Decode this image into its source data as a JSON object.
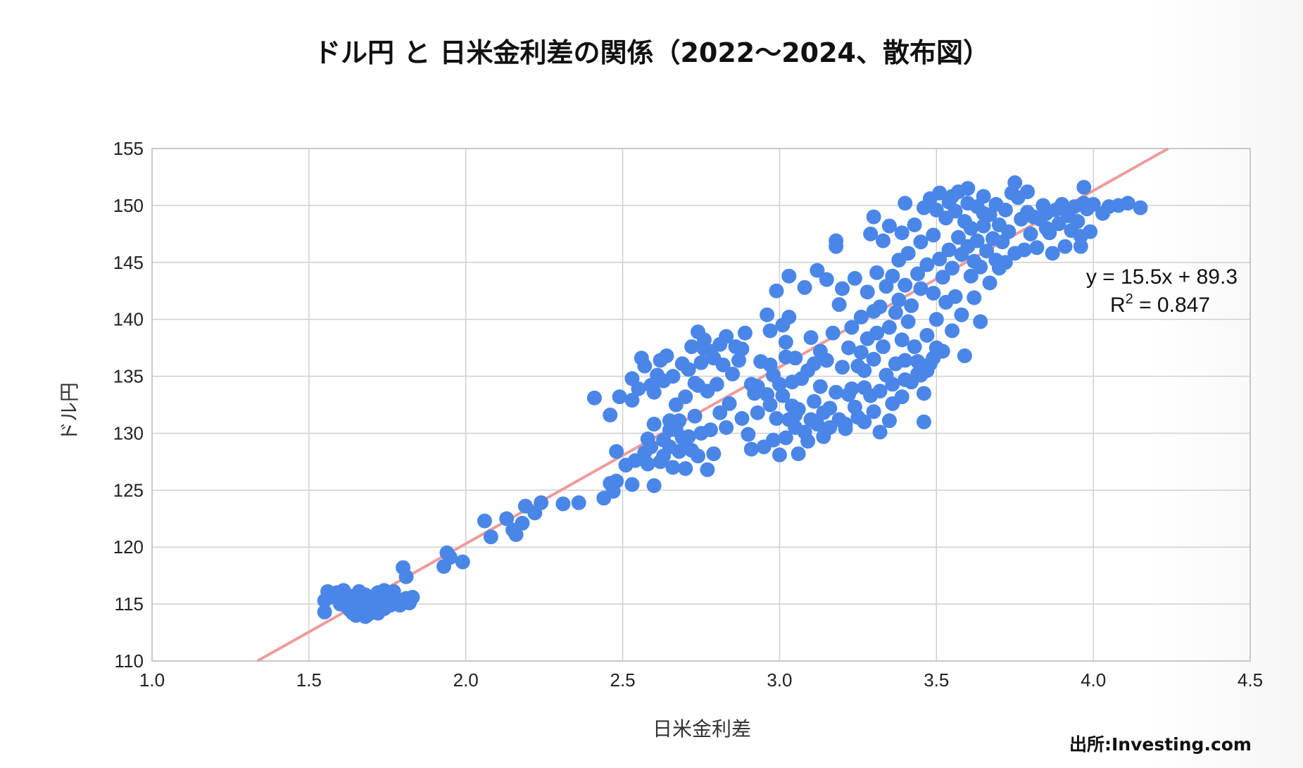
{
  "chart_data": {
    "type": "scatter",
    "title": "ドル円 と 日米金利差の関係（2022〜2024、散布図）",
    "xlabel": "日米金利差",
    "ylabel": "ドル円",
    "xlim": [
      1.0,
      4.5
    ],
    "ylim": [
      110,
      155
    ],
    "xticks": [
      "1.0",
      "1.5",
      "2.0",
      "2.5",
      "3.0",
      "3.5",
      "4.0",
      "4.5"
    ],
    "yticks": [
      "110",
      "115",
      "120",
      "125",
      "130",
      "135",
      "140",
      "145",
      "150",
      "155"
    ],
    "grid": true,
    "trendline": {
      "slope": 15.5,
      "intercept": 89.3,
      "equation": "y = 15.5x + 89.3",
      "r2_prefix": "R",
      "r2_sup": "2",
      "r2_value": " = 0.847",
      "color": "#ee9b9b"
    },
    "series_color": "#4a86e8",
    "points": [
      [
        1.55,
        114.3
      ],
      [
        1.55,
        115.3
      ],
      [
        1.56,
        116.1
      ],
      [
        1.58,
        115.6
      ],
      [
        1.59,
        116.0
      ],
      [
        1.6,
        115.0
      ],
      [
        1.61,
        115.4
      ],
      [
        1.62,
        114.8
      ],
      [
        1.63,
        115.7
      ],
      [
        1.63,
        114.5
      ],
      [
        1.64,
        114.2
      ],
      [
        1.65,
        115.1
      ],
      [
        1.65,
        114.0
      ],
      [
        1.66,
        115.4
      ],
      [
        1.67,
        114.6
      ],
      [
        1.68,
        113.9
      ],
      [
        1.68,
        115.8
      ],
      [
        1.69,
        114.9
      ],
      [
        1.7,
        114.3
      ],
      [
        1.7,
        115.6
      ],
      [
        1.71,
        114.8
      ],
      [
        1.72,
        114.2
      ],
      [
        1.72,
        116.0
      ],
      [
        1.73,
        115.1
      ],
      [
        1.74,
        114.6
      ],
      [
        1.75,
        115.5
      ],
      [
        1.76,
        114.9
      ],
      [
        1.77,
        116.1
      ],
      [
        1.78,
        115.2
      ],
      [
        1.79,
        114.9
      ],
      [
        1.8,
        118.2
      ],
      [
        1.81,
        117.4
      ],
      [
        1.81,
        115.5
      ],
      [
        1.82,
        115.1
      ],
      [
        1.83,
        115.6
      ],
      [
        1.69,
        114.1
      ],
      [
        1.71,
        115.3
      ],
      [
        1.74,
        116.2
      ],
      [
        1.66,
        116.1
      ],
      [
        1.61,
        116.2
      ],
      [
        1.93,
        118.3
      ],
      [
        1.94,
        119.5
      ],
      [
        1.95,
        119.1
      ],
      [
        1.99,
        118.7
      ],
      [
        2.06,
        122.3
      ],
      [
        2.08,
        120.9
      ],
      [
        2.13,
        122.5
      ],
      [
        2.15,
        121.5
      ],
      [
        2.16,
        121.1
      ],
      [
        2.18,
        122.1
      ],
      [
        2.19,
        123.6
      ],
      [
        2.22,
        123.0
      ],
      [
        2.24,
        123.9
      ],
      [
        2.31,
        123.8
      ],
      [
        2.36,
        123.9
      ],
      [
        2.44,
        124.3
      ],
      [
        2.46,
        125.6
      ],
      [
        2.48,
        125.8
      ],
      [
        2.47,
        124.9
      ],
      [
        2.53,
        125.5
      ],
      [
        2.41,
        133.1
      ],
      [
        2.46,
        131.6
      ],
      [
        2.48,
        128.4
      ],
      [
        2.49,
        133.2
      ],
      [
        2.51,
        127.2
      ],
      [
        2.53,
        134.8
      ],
      [
        2.53,
        132.9
      ],
      [
        2.54,
        127.6
      ],
      [
        2.55,
        133.9
      ],
      [
        2.56,
        136.6
      ],
      [
        2.57,
        135.9
      ],
      [
        2.57,
        128.3
      ],
      [
        2.58,
        127.3
      ],
      [
        2.59,
        134.2
      ],
      [
        2.59,
        128.8
      ],
      [
        2.6,
        130.8
      ],
      [
        2.6,
        133.6
      ],
      [
        2.61,
        135.1
      ],
      [
        2.62,
        127.5
      ],
      [
        2.62,
        136.4
      ],
      [
        2.63,
        129.4
      ],
      [
        2.63,
        134.6
      ],
      [
        2.64,
        136.8
      ],
      [
        2.65,
        128.8
      ],
      [
        2.65,
        130.3
      ],
      [
        2.65,
        131.1
      ],
      [
        2.66,
        127.0
      ],
      [
        2.66,
        135.0
      ],
      [
        2.67,
        130.3
      ],
      [
        2.68,
        128.4
      ],
      [
        2.69,
        136.1
      ],
      [
        2.69,
        129.6
      ],
      [
        2.7,
        133.2
      ],
      [
        2.7,
        129.1
      ],
      [
        2.71,
        135.6
      ],
      [
        2.72,
        128.5
      ],
      [
        2.72,
        137.6
      ],
      [
        2.73,
        131.5
      ],
      [
        2.73,
        134.4
      ],
      [
        2.74,
        128.0
      ],
      [
        2.74,
        138.9
      ],
      [
        2.75,
        136.2
      ],
      [
        2.75,
        130.0
      ],
      [
        2.76,
        138.2
      ],
      [
        2.77,
        133.7
      ],
      [
        2.78,
        137.2
      ],
      [
        2.78,
        130.3
      ],
      [
        2.79,
        136.6
      ],
      [
        2.8,
        134.3
      ],
      [
        2.81,
        137.8
      ],
      [
        2.81,
        131.8
      ],
      [
        2.82,
        136.0
      ],
      [
        2.83,
        138.5
      ],
      [
        2.83,
        130.5
      ],
      [
        2.84,
        132.6
      ],
      [
        2.85,
        135.2
      ],
      [
        2.86,
        137.6
      ],
      [
        2.87,
        136.4
      ],
      [
        2.88,
        131.3
      ],
      [
        2.7,
        126.9
      ],
      [
        2.71,
        129.7
      ],
      [
        2.77,
        126.8
      ],
      [
        2.79,
        128.2
      ],
      [
        2.68,
        131.1
      ],
      [
        2.63,
        128.0
      ],
      [
        2.6,
        125.4
      ],
      [
        2.74,
        134.2
      ],
      [
        2.76,
        137.4
      ],
      [
        2.67,
        132.5
      ],
      [
        2.58,
        129.5
      ],
      [
        2.88,
        137.4
      ],
      [
        2.89,
        138.8
      ],
      [
        2.9,
        129.9
      ],
      [
        2.91,
        134.3
      ],
      [
        2.91,
        128.6
      ],
      [
        2.92,
        133.5
      ],
      [
        2.93,
        131.8
      ],
      [
        2.94,
        136.3
      ],
      [
        2.95,
        128.8
      ],
      [
        2.96,
        133.4
      ],
      [
        2.96,
        140.4
      ],
      [
        2.97,
        132.5
      ],
      [
        2.97,
        139.0
      ],
      [
        2.98,
        129.4
      ],
      [
        2.98,
        135.1
      ],
      [
        2.99,
        142.5
      ],
      [
        3.0,
        128.1
      ],
      [
        3.01,
        133.3
      ],
      [
        3.01,
        139.5
      ],
      [
        3.02,
        136.7
      ],
      [
        3.02,
        129.6
      ],
      [
        3.03,
        131.2
      ],
      [
        3.03,
        140.2
      ],
      [
        3.03,
        143.8
      ],
      [
        3.04,
        132.4
      ],
      [
        3.04,
        134.5
      ],
      [
        3.05,
        130.5
      ],
      [
        3.05,
        136.6
      ],
      [
        3.06,
        128.2
      ],
      [
        3.06,
        132.1
      ],
      [
        3.07,
        134.8
      ],
      [
        3.08,
        130.1
      ],
      [
        3.08,
        142.8
      ],
      [
        3.09,
        135.5
      ],
      [
        3.1,
        131.2
      ],
      [
        3.1,
        138.4
      ],
      [
        3.11,
        136.1
      ],
      [
        3.11,
        132.8
      ],
      [
        3.12,
        144.3
      ],
      [
        3.12,
        130.8
      ],
      [
        3.13,
        134.1
      ],
      [
        3.13,
        137.2
      ],
      [
        3.14,
        131.8
      ],
      [
        3.15,
        143.5
      ],
      [
        3.15,
        136.4
      ],
      [
        3.16,
        132.2
      ],
      [
        3.16,
        130.5
      ],
      [
        3.17,
        138.8
      ],
      [
        3.18,
        133.6
      ],
      [
        3.18,
        146.9
      ],
      [
        3.18,
        146.4
      ],
      [
        3.19,
        131.2
      ],
      [
        3.19,
        141.3
      ],
      [
        3.2,
        135.8
      ],
      [
        3.2,
        142.7
      ],
      [
        3.21,
        130.8
      ],
      [
        3.22,
        137.5
      ],
      [
        3.22,
        133.4
      ],
      [
        3.23,
        139.3
      ],
      [
        3.24,
        132.3
      ],
      [
        3.24,
        143.6
      ],
      [
        3.25,
        135.9
      ],
      [
        3.25,
        131.4
      ],
      [
        3.26,
        140.2
      ],
      [
        3.26,
        137.1
      ],
      [
        3.27,
        134.0
      ],
      [
        3.27,
        131.0
      ],
      [
        3.28,
        142.4
      ],
      [
        3.28,
        138.3
      ],
      [
        3.29,
        133.3
      ],
      [
        3.29,
        147.5
      ],
      [
        3.3,
        136.5
      ],
      [
        3.3,
        140.7
      ],
      [
        3.3,
        131.9
      ],
      [
        3.31,
        138.8
      ],
      [
        3.31,
        144.1
      ],
      [
        3.32,
        133.7
      ],
      [
        3.32,
        141.1
      ],
      [
        3.33,
        137.6
      ],
      [
        3.33,
        146.9
      ],
      [
        3.34,
        135.1
      ],
      [
        3.34,
        142.9
      ],
      [
        3.35,
        139.3
      ],
      [
        3.35,
        131.1
      ],
      [
        3.35,
        148.2
      ],
      [
        3.36,
        143.8
      ],
      [
        3.36,
        134.3
      ],
      [
        3.37,
        140.6
      ],
      [
        3.37,
        136.1
      ],
      [
        3.38,
        145.2
      ],
      [
        3.38,
        141.7
      ],
      [
        3.39,
        138.2
      ],
      [
        3.39,
        133.2
      ],
      [
        3.39,
        147.6
      ],
      [
        3.4,
        143.0
      ],
      [
        3.4,
        136.4
      ],
      [
        3.41,
        139.8
      ],
      [
        3.41,
        145.8
      ],
      [
        3.42,
        134.5
      ],
      [
        3.42,
        141.2
      ],
      [
        3.43,
        148.3
      ],
      [
        3.43,
        137.6
      ],
      [
        3.44,
        144.0
      ],
      [
        3.44,
        135.2
      ],
      [
        3.45,
        146.8
      ],
      [
        3.45,
        142.7
      ],
      [
        3.46,
        131.0
      ],
      [
        3.46,
        149.8
      ],
      [
        3.47,
        138.6
      ],
      [
        3.47,
        144.8
      ],
      [
        3.48,
        136.1
      ],
      [
        3.48,
        150.6
      ],
      [
        3.49,
        147.4
      ],
      [
        3.49,
        142.3
      ],
      [
        3.5,
        149.6
      ],
      [
        3.5,
        140.0
      ],
      [
        3.51,
        145.3
      ],
      [
        3.51,
        151.1
      ],
      [
        3.52,
        143.7
      ],
      [
        3.52,
        137.2
      ],
      [
        3.53,
        148.9
      ],
      [
        3.53,
        141.5
      ],
      [
        3.54,
        150.3
      ],
      [
        3.54,
        146.1
      ],
      [
        3.55,
        139.0
      ],
      [
        3.55,
        144.5
      ],
      [
        3.56,
        149.5
      ],
      [
        3.56,
        142.0
      ],
      [
        3.57,
        147.2
      ],
      [
        3.57,
        151.2
      ],
      [
        3.58,
        145.7
      ],
      [
        3.58,
        140.4
      ],
      [
        3.59,
        148.6
      ],
      [
        3.59,
        136.8
      ],
      [
        3.6,
        146.4
      ],
      [
        3.6,
        150.2
      ],
      [
        3.61,
        143.8
      ],
      [
        3.61,
        148.0
      ],
      [
        3.62,
        145.1
      ],
      [
        3.62,
        141.9
      ],
      [
        3.63,
        149.9
      ],
      [
        3.63,
        146.9
      ],
      [
        3.64,
        144.6
      ],
      [
        3.64,
        139.8
      ],
      [
        3.65,
        148.2
      ],
      [
        3.65,
        150.8
      ],
      [
        3.66,
        146.0
      ],
      [
        3.67,
        143.2
      ],
      [
        3.67,
        149.2
      ],
      [
        3.68,
        147.1
      ],
      [
        3.69,
        145.2
      ],
      [
        3.69,
        150.1
      ],
      [
        3.7,
        148.3
      ],
      [
        3.7,
        144.5
      ],
      [
        3.71,
        146.8
      ],
      [
        3.72,
        149.6
      ],
      [
        3.72,
        145.0
      ],
      [
        3.73,
        147.7
      ],
      [
        3.74,
        151.1
      ],
      [
        3.75,
        145.8
      ],
      [
        3.76,
        150.7
      ],
      [
        3.77,
        148.8
      ],
      [
        3.78,
        146.1
      ],
      [
        3.79,
        151.2
      ],
      [
        3.79,
        149.4
      ],
      [
        3.8,
        147.5
      ],
      [
        3.81,
        149.0
      ],
      [
        3.82,
        146.3
      ],
      [
        3.83,
        148.8
      ],
      [
        3.84,
        150.0
      ],
      [
        3.85,
        149.3
      ],
      [
        3.86,
        147.6
      ],
      [
        3.87,
        145.8
      ],
      [
        3.88,
        149.6
      ],
      [
        3.89,
        148.4
      ],
      [
        3.9,
        150.1
      ],
      [
        3.91,
        146.4
      ],
      [
        3.92,
        149.1
      ],
      [
        3.93,
        147.8
      ],
      [
        3.94,
        149.9
      ],
      [
        3.95,
        148.6
      ],
      [
        3.96,
        146.4
      ],
      [
        3.97,
        150.2
      ],
      [
        3.97,
        151.6
      ],
      [
        3.98,
        149.7
      ],
      [
        3.99,
        147.7
      ],
      [
        4.0,
        150.1
      ],
      [
        4.03,
        149.3
      ],
      [
        4.05,
        149.9
      ],
      [
        4.08,
        150.0
      ],
      [
        4.11,
        150.2
      ],
      [
        4.15,
        149.8
      ],
      [
        3.96,
        147.3
      ],
      [
        3.75,
        152.0
      ],
      [
        3.6,
        151.5
      ],
      [
        3.4,
        150.2
      ],
      [
        3.3,
        149.0
      ],
      [
        3.55,
        150.8
      ],
      [
        3.65,
        149.3
      ],
      [
        3.85,
        148.0
      ],
      [
        3.44,
        136.3
      ],
      [
        3.45,
        135.1
      ],
      [
        3.47,
        135.5
      ],
      [
        3.49,
        136.6
      ],
      [
        3.5,
        137.5
      ],
      [
        3.46,
        133.5
      ],
      [
        3.4,
        134.7
      ],
      [
        3.36,
        132.6
      ],
      [
        3.32,
        130.1
      ],
      [
        3.27,
        135.5
      ],
      [
        3.23,
        133.9
      ],
      [
        3.21,
        130.4
      ],
      [
        3.14,
        129.7
      ],
      [
        3.09,
        129.3
      ],
      [
        3.05,
        131.6
      ],
      [
        3.0,
        134.3
      ],
      [
        2.97,
        136.0
      ],
      [
        2.93,
        134.1
      ],
      [
        2.99,
        131.3
      ],
      [
        3.02,
        138.0
      ]
    ]
  },
  "source_label": "出所:Investing.com"
}
